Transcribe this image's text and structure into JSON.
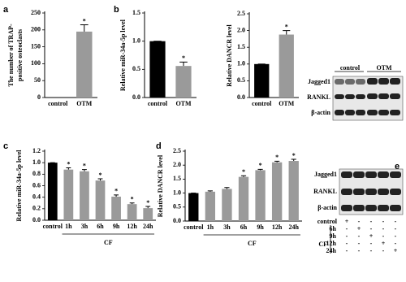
{
  "chart_data": [
    {
      "type": "bar",
      "panel_label": "a",
      "y_label": [
        "The number of TRAP-",
        "positive osteoclasts"
      ],
      "categories": [
        "control",
        "OTM"
      ],
      "values": [
        0,
        195
      ],
      "errors": [
        0,
        20
      ],
      "significance": [
        null,
        "*"
      ],
      "colors": [
        "#000000",
        "#9a9a9a"
      ],
      "ylim": [
        0,
        250
      ],
      "yticks": [
        0,
        50,
        100,
        150,
        200,
        250
      ]
    },
    {
      "type": "bar",
      "panel_label": "b",
      "y_label": "Relative miR-34a-5p level",
      "categories": [
        "control",
        "OTM"
      ],
      "values": [
        1.0,
        0.56
      ],
      "errors": [
        0,
        0.07
      ],
      "significance": [
        null,
        "*"
      ],
      "colors": [
        "#000000",
        "#9a9a9a"
      ],
      "ylim": [
        0,
        1.5
      ],
      "yticks": [
        {
          "value": 0,
          "label": "0.0"
        },
        {
          "value": 0.5,
          "label": "0.5"
        },
        {
          "value": 1,
          "label": "1.0"
        },
        {
          "value": 1.5,
          "label": "1.5"
        }
      ]
    },
    {
      "type": "bar",
      "y_label": "Relative DANCR level",
      "categories": [
        "control",
        "OTM"
      ],
      "values": [
        1.0,
        1.88
      ],
      "errors": [
        0,
        0.12
      ],
      "significance": [
        null,
        "*"
      ],
      "colors": [
        "#000000",
        "#9a9a9a"
      ],
      "ylim": [
        0,
        2.5
      ],
      "yticks": [
        {
          "value": 0,
          "label": "0.0"
        },
        {
          "value": 0.5,
          "label": "0.5"
        },
        {
          "value": 1,
          "label": "1.0"
        },
        {
          "value": 1.5,
          "label": "1.5"
        },
        {
          "value": 2,
          "label": "2.0"
        },
        {
          "value": 2.5,
          "label": "2.5"
        }
      ]
    },
    {
      "type": "bar",
      "panel_label": "c",
      "y_label": "Relative miR-34a-5p level",
      "group_label": "CF",
      "categories": [
        "control",
        "1h",
        "3h",
        "6h",
        "9h",
        "12h",
        "24h"
      ],
      "values": [
        1.0,
        0.88,
        0.85,
        0.69,
        0.41,
        0.28,
        0.21
      ],
      "errors": [
        0,
        0.03,
        0.03,
        0.03,
        0.03,
        0.02,
        0.03
      ],
      "significance": [
        null,
        "*",
        "*",
        "*",
        "*",
        "*",
        "*"
      ],
      "colors": [
        "#000000",
        "#9a9a9a",
        "#9a9a9a",
        "#9a9a9a",
        "#9a9a9a",
        "#9a9a9a",
        "#9a9a9a"
      ],
      "ylim": [
        0,
        1.2
      ],
      "yticks": [
        {
          "value": 0,
          "label": "0.0"
        },
        {
          "value": 0.2,
          "label": "0.2"
        },
        {
          "value": 0.4,
          "label": "0.4"
        },
        {
          "value": 0.6,
          "label": "0.6"
        },
        {
          "value": 0.8,
          "label": "0.8"
        },
        {
          "value": 1,
          "label": "1.0"
        },
        {
          "value": 1.2,
          "label": "1.2"
        }
      ]
    },
    {
      "type": "bar",
      "panel_label": "d",
      "y_label": "Relative DANCR level",
      "group_label": "CF",
      "categories": [
        "control",
        "1h",
        "3h",
        "6h",
        "9h",
        "12h",
        "24h"
      ],
      "values": [
        1.0,
        1.05,
        1.15,
        1.58,
        1.82,
        2.1,
        2.15
      ],
      "errors": [
        0,
        0.03,
        0.05,
        0.04,
        0.03,
        0.04,
        0.06
      ],
      "significance": [
        null,
        null,
        null,
        "*",
        "*",
        "*",
        "*"
      ],
      "colors": [
        "#000000",
        "#9a9a9a",
        "#9a9a9a",
        "#9a9a9a",
        "#9a9a9a",
        "#9a9a9a",
        "#9a9a9a"
      ],
      "ylim": [
        0,
        2.5
      ],
      "yticks": [
        {
          "value": 0,
          "label": "0.0"
        },
        {
          "value": 0.5,
          "label": "0.5"
        },
        {
          "value": 1,
          "label": "1.0"
        },
        {
          "value": 1.5,
          "label": "1.5"
        },
        {
          "value": 2,
          "label": "2.0"
        },
        {
          "value": 2.5,
          "label": "2.5"
        }
      ]
    }
  ],
  "blots": [
    {
      "columns": [
        "control",
        "OTM"
      ],
      "rows": [
        "Jagged1",
        "RANKL",
        "β-actin"
      ]
    },
    {
      "panel_label": "e",
      "rows": [
        "Jagged1",
        "RANKL",
        "β-actin"
      ],
      "treatment_label": "CF",
      "treatments": [
        "control",
        "6h",
        "9h",
        "12h",
        "24h"
      ],
      "marks": [
        [
          "+",
          "-",
          "-",
          "-",
          "-"
        ],
        [
          "-",
          "+",
          "-",
          "-",
          "-"
        ],
        [
          "-",
          "-",
          "+",
          "-",
          "-"
        ],
        [
          "-",
          "-",
          "-",
          "+",
          "-"
        ],
        [
          "-",
          "-",
          "-",
          "-",
          "+"
        ]
      ]
    }
  ]
}
